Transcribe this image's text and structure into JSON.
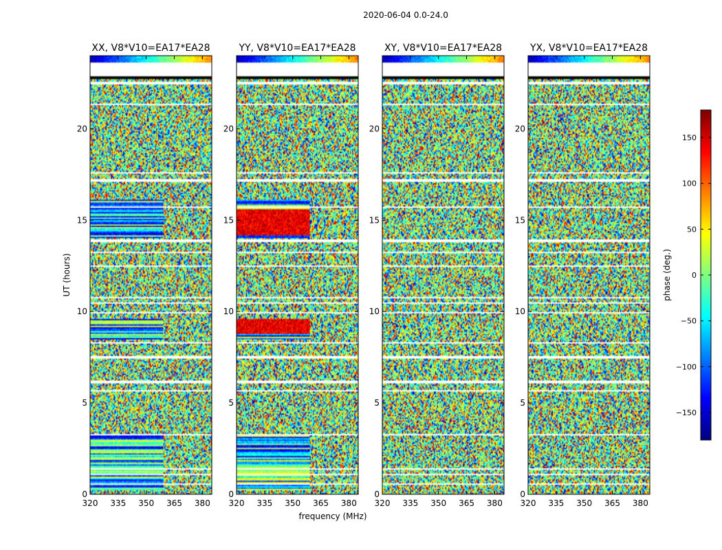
{
  "figure_title": "2020-06-04 0.0-24.0",
  "chart_data": [
    {
      "type": "heatmap",
      "title": "XX, V8*V10=EA17*EA28",
      "x": [
        320,
        385
      ],
      "y": [
        0,
        24
      ],
      "xticks": [
        320,
        335,
        350,
        365,
        380
      ],
      "yticks": [
        0,
        5,
        10,
        15,
        20
      ],
      "ylabel": "UT (hours)",
      "xlabel": ""
    },
    {
      "type": "heatmap",
      "title": "YY, V8*V10=EA17*EA28",
      "x": [
        320,
        385
      ],
      "y": [
        0,
        24
      ],
      "xticks": [
        320,
        335,
        350,
        365,
        380
      ],
      "yticks": [
        0,
        5,
        10,
        15,
        20
      ],
      "ylabel": "",
      "xlabel": "frequency (MHz)"
    },
    {
      "type": "heatmap",
      "title": "XY, V8*V10=EA17*EA28",
      "x": [
        320,
        385
      ],
      "y": [
        0,
        24
      ],
      "xticks": [
        320,
        335,
        350,
        365,
        380
      ],
      "yticks": [
        0,
        5,
        10,
        15,
        20
      ],
      "ylabel": "",
      "xlabel": ""
    },
    {
      "type": "heatmap",
      "title": "YX, V8*V10=EA17*EA28",
      "x": [
        320,
        385
      ],
      "y": [
        0,
        24
      ],
      "xticks": [
        320,
        335,
        350,
        365,
        380
      ],
      "yticks": [
        0,
        5,
        10,
        15,
        20
      ],
      "ylabel": "",
      "xlabel": ""
    }
  ],
  "colorbar": {
    "label": "phase (deg.)",
    "range": [
      -180,
      180
    ],
    "ticks": [
      150,
      100,
      50,
      0,
      -50,
      -100,
      -150
    ],
    "colormap": "jet"
  },
  "blank_rows_ut": [
    [
      23.2,
      23.6
    ],
    [
      22.9,
      23.2
    ],
    [
      22.45,
      22.55
    ],
    [
      21.3,
      21.35
    ],
    [
      17.55,
      17.65
    ],
    [
      17.1,
      17.25
    ],
    [
      15.65,
      15.72
    ],
    [
      13.8,
      13.95
    ],
    [
      13.2,
      13.3
    ],
    [
      12.45,
      12.5
    ],
    [
      10.75,
      10.8
    ],
    [
      10.45,
      10.5
    ],
    [
      9.9,
      9.95
    ],
    [
      8.25,
      8.3
    ],
    [
      7.45,
      7.6
    ],
    [
      6.1,
      6.2
    ],
    [
      5.6,
      5.7
    ],
    [
      5.3,
      5.35
    ],
    [
      4.4,
      4.45
    ],
    [
      3.25,
      3.3
    ],
    [
      1.35,
      1.4
    ],
    [
      1.05,
      1.1
    ],
    [
      0.55,
      0.6
    ]
  ],
  "flagged_rows_ut": [
    [
      22.7,
      23.2
    ]
  ]
}
